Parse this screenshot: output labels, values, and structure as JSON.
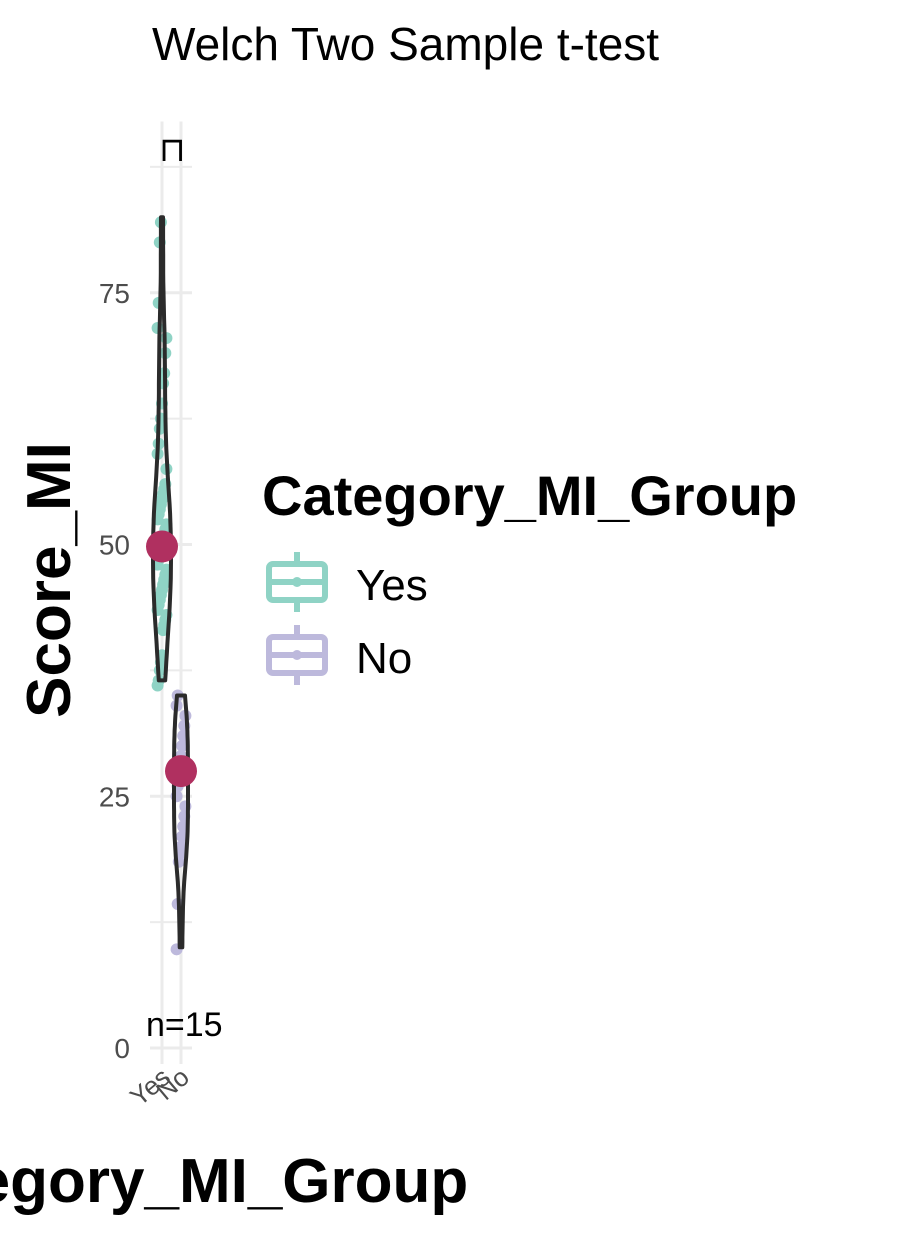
{
  "chart_data": {
    "type": "violin",
    "title": "Welch Two Sample t-test",
    "xlabel": "Category_MI_Group",
    "ylabel": "Score_MI",
    "categories": [
      "Yes",
      "No"
    ],
    "ylim": [
      0,
      92
    ],
    "yticks": [
      0,
      25,
      50,
      75
    ],
    "grid": true,
    "legend": {
      "title": "Category_MI_Group",
      "position": "right",
      "entries": [
        "Yes",
        "No"
      ]
    },
    "colors": {
      "Yes": "#8fd3c5",
      "No": "#bdb9dc",
      "mean": "#b03060",
      "outline": "#2b2b2b",
      "grid": "#ebebeb"
    },
    "annotations": {
      "bracket": "⊓",
      "sample_sizes": "n=15"
    },
    "series": [
      {
        "name": "Yes",
        "mean": 49.8,
        "min": 36.5,
        "max": 82.5,
        "points": [
          36,
          36.5,
          37.5,
          38.3,
          39,
          41.5,
          42,
          42.5,
          43,
          43.5,
          44,
          44.5,
          45,
          45.5,
          46,
          46.5,
          47,
          47.5,
          48,
          48.5,
          49,
          49.5,
          50,
          50.5,
          51,
          51.5,
          52,
          52.5,
          53,
          53.5,
          54,
          54.5,
          55,
          55.5,
          56,
          57.5,
          59,
          60,
          61.5,
          62.5,
          64,
          66,
          67,
          69,
          70.5,
          71.5,
          74,
          80,
          82
        ]
      },
      {
        "name": "No",
        "mean": 27.5,
        "min": 10,
        "max": 35,
        "points": [
          9.8,
          14.3,
          18.5,
          19.3,
          20,
          21,
          22,
          23,
          24,
          25,
          26,
          27,
          28,
          29,
          30,
          31,
          32,
          33,
          34,
          35
        ]
      }
    ]
  }
}
